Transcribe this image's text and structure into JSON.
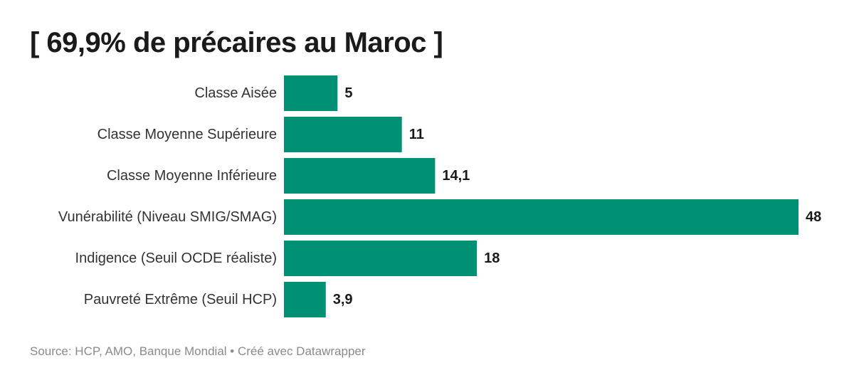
{
  "title": "[ 69,9% de précaires au Maroc ]",
  "footer": {
    "source": "Source: HCP, AMO, Banque Mondial",
    "separator": "•",
    "credit": "Créé avec Datawrapper"
  },
  "chart_data": {
    "type": "bar",
    "orientation": "horizontal",
    "title": "[ 69,9% de précaires au Maroc ]",
    "categories": [
      "Classe Aisée",
      "Classe Moyenne Supérieure",
      "Classe Moyenne Inférieure",
      "Vunérabilité (Niveau SMIG/SMAG)",
      "Indigence (Seuil OCDE réaliste)",
      "Pauvreté Extrême (Seuil HCP)"
    ],
    "values": [
      5,
      11,
      14.1,
      48,
      18,
      3.9
    ],
    "value_labels": [
      "5",
      "11",
      "14,1",
      "48",
      "18",
      "3,9"
    ],
    "xlim": [
      0,
      48
    ],
    "bar_color": "#009175",
    "grid": false,
    "legend": "none",
    "source": "Source: HCP, AMO, Banque Mondial • Créé avec Datawrapper"
  }
}
